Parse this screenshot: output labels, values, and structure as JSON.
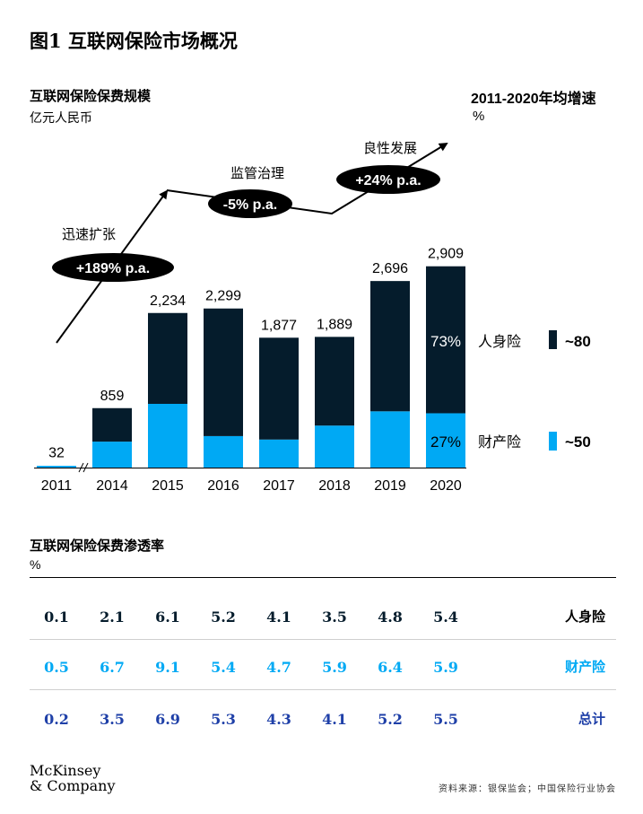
{
  "title": "图1 互联网保险市场概况",
  "subtitle": "互联网保险保费规模",
  "subtitle_unit": "亿元人民币",
  "right_title": "2011-2020年均增速",
  "right_unit": "%",
  "colors": {
    "life": "#051c2c",
    "property": "#00a9f4",
    "navy_text": "#1f40a8"
  },
  "chart_data": {
    "type": "bar",
    "categories": [
      "2011",
      "2014",
      "2015",
      "2016",
      "2017",
      "2018",
      "2019",
      "2020"
    ],
    "totals": [
      "32",
      "859",
      "2,234",
      "2,299",
      "1,877",
      "1,889",
      "2,696",
      "2,909"
    ],
    "series": [
      {
        "name": "人身险",
        "values": [
          0,
          484,
          1313,
          1844,
          1472,
          1282,
          1883,
          2124
        ]
      },
      {
        "name": "财产险",
        "values": [
          32,
          375,
          921,
          455,
          405,
          607,
          813,
          785
        ]
      }
    ],
    "share_labels": {
      "life": "73%",
      "property": "27%"
    },
    "annotations": [
      {
        "phase": "迅速扩张",
        "growth": "+189% p.a."
      },
      {
        "phase": "监管治理",
        "growth": "-5% p.a."
      },
      {
        "phase": "良性发展",
        "growth": "+24% p.a."
      }
    ],
    "ylim": [
      0,
      3000
    ],
    "right_legend": [
      {
        "name": "人身险",
        "value": "~80"
      },
      {
        "name": "财产险",
        "value": "~50"
      }
    ]
  },
  "penetration": {
    "title": "互联网保险保费渗透率",
    "unit": "%",
    "rows": [
      {
        "label": "人身险",
        "values": [
          "0.1",
          "2.1",
          "6.1",
          "5.2",
          "4.1",
          "3.5",
          "4.8",
          "5.4"
        ]
      },
      {
        "label": "财产险",
        "values": [
          "0.5",
          "6.7",
          "9.1",
          "5.4",
          "4.7",
          "5.9",
          "6.4",
          "5.9"
        ]
      },
      {
        "label": "总计",
        "values": [
          "0.2",
          "3.5",
          "6.9",
          "5.3",
          "4.3",
          "4.1",
          "5.2",
          "5.5"
        ]
      }
    ]
  },
  "logo": {
    "line1": "McKinsey",
    "line2": "& Company"
  },
  "source": "资料来源：银保监会；中国保险行业协会"
}
